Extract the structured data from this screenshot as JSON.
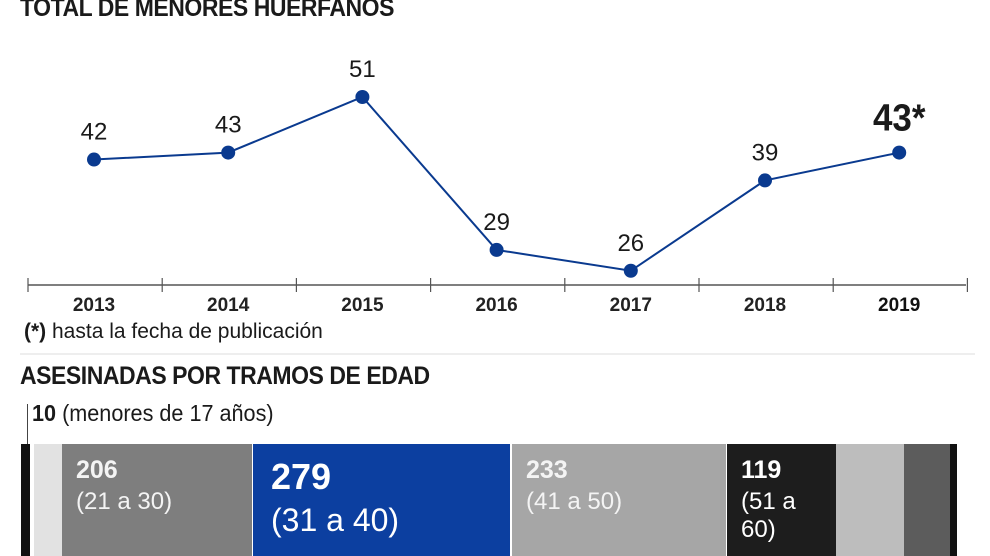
{
  "chart_data": [
    {
      "type": "line",
      "title": "TOTAL DE MENORES HUÉRFANOS",
      "categories": [
        "2013",
        "2014",
        "2015",
        "2016",
        "2017",
        "2018",
        "2019"
      ],
      "series": [
        {
          "values": [
            42,
            43,
            51,
            29,
            26,
            39,
            43
          ]
        }
      ],
      "data_labels": [
        "42",
        "43",
        "51",
        "29",
        "26",
        "39",
        "43*"
      ],
      "highlighted_category": "2019",
      "ylim": [
        20,
        55
      ],
      "grid": false,
      "color": "#0a3a8f",
      "note": {
        "marker": "(*)",
        "text": " hasta la fecha de publicación"
      }
    },
    {
      "type": "bar",
      "orientation": "horizontal-stacked",
      "title": "ASESINADAS POR TRAMOS DE EDAD",
      "first_label": {
        "value": "10",
        "text": " (menores de 17 años)"
      },
      "segments": [
        {
          "value": 10,
          "range": "(menores de 17 años)",
          "color": "#e2e2e2",
          "show_label": false
        },
        {
          "value": 206,
          "range": "(21 a 30)",
          "color": "#7e7e7e",
          "show_label": true
        },
        {
          "value": 279,
          "range": "(31 a 40)",
          "color": "#0c3fa0",
          "show_label": true
        },
        {
          "value": 233,
          "range": "(41 a 50)",
          "color": "#a6a6a6",
          "show_label": true
        },
        {
          "value": 119,
          "range": "(51 a 60)",
          "color": "#1d1d1d",
          "show_label": true
        },
        {
          "value": null,
          "range": "",
          "color": "#bdbdbd",
          "show_label": false
        },
        {
          "value": null,
          "range": "",
          "color": "#5c5c5c",
          "show_label": false
        }
      ]
    }
  ]
}
